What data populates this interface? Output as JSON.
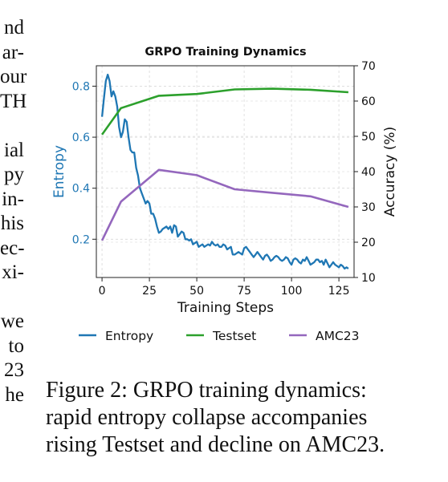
{
  "left_text_fragments": [
    "nd",
    "ar-",
    "our",
    "TH",
    "",
    "ial",
    "py",
    "in-",
    "his",
    "ec-",
    "xi-",
    "",
    "we",
    "to",
    "23",
    "he"
  ],
  "caption_lines": [
    "Figure 2: GRPO training dynamics:",
    "rapid entropy collapse accompanies",
    "rising Testset and decline on AMC23."
  ],
  "chart_data": {
    "type": "line",
    "title": "GRPO Training Dynamics",
    "xlabel": "Training Steps",
    "ylabel_left": "Entropy",
    "ylabel_right": "Accuracy (%)",
    "xlim": [
      -3,
      133
    ],
    "ylim_left": [
      0.05,
      0.88
    ],
    "ylim_right": [
      10,
      70
    ],
    "x_ticks": [
      0,
      25,
      50,
      75,
      100,
      125
    ],
    "y_left_ticks": [
      0.2,
      0.4,
      0.6,
      0.8
    ],
    "y_right_ticks": [
      10,
      20,
      30,
      40,
      50,
      60,
      70
    ],
    "grid": true,
    "legend_position": "bottom",
    "colors": {
      "entropy": "#1f77b4",
      "testset": "#2ca02c",
      "amc23": "#9467bd",
      "left_axis_text": "#1f77b4"
    },
    "series": [
      {
        "name": "Entropy",
        "axis": "left",
        "x": [
          0,
          1,
          2,
          3,
          4,
          5,
          6,
          7,
          8,
          9,
          10,
          11,
          12,
          13,
          14,
          15,
          16,
          17,
          18,
          19,
          20,
          21,
          22,
          23,
          24,
          25,
          26,
          27,
          28,
          29,
          30,
          31,
          32,
          33,
          34,
          35,
          36,
          37,
          38,
          39,
          40,
          41,
          42,
          43,
          44,
          45,
          46,
          47,
          48,
          49,
          50,
          51,
          52,
          53,
          54,
          55,
          56,
          57,
          58,
          59,
          60,
          61,
          62,
          63,
          64,
          65,
          66,
          67,
          68,
          69,
          70,
          71,
          72,
          73,
          74,
          75,
          76,
          77,
          78,
          79,
          80,
          81,
          82,
          83,
          84,
          85,
          86,
          87,
          88,
          89,
          90,
          91,
          92,
          93,
          94,
          95,
          96,
          97,
          98,
          99,
          100,
          101,
          102,
          103,
          104,
          105,
          106,
          107,
          108,
          109,
          110,
          111,
          112,
          113,
          114,
          115,
          116,
          117,
          118,
          119,
          120,
          121,
          122,
          123,
          124,
          125,
          126,
          127,
          128,
          129,
          130
        ],
        "values": [
          0.68,
          0.75,
          0.82,
          0.845,
          0.82,
          0.76,
          0.78,
          0.76,
          0.72,
          0.64,
          0.6,
          0.62,
          0.67,
          0.66,
          0.6,
          0.55,
          0.54,
          0.54,
          0.48,
          0.45,
          0.4,
          0.38,
          0.36,
          0.34,
          0.35,
          0.34,
          0.3,
          0.3,
          0.28,
          0.25,
          0.225,
          0.23,
          0.24,
          0.245,
          0.25,
          0.24,
          0.25,
          0.225,
          0.255,
          0.25,
          0.21,
          0.22,
          0.23,
          0.225,
          0.2,
          0.2,
          0.195,
          0.2,
          0.18,
          0.185,
          0.19,
          0.17,
          0.175,
          0.18,
          0.17,
          0.175,
          0.18,
          0.175,
          0.19,
          0.18,
          0.175,
          0.18,
          0.17,
          0.17,
          0.18,
          0.175,
          0.16,
          0.165,
          0.17,
          0.14,
          0.14,
          0.145,
          0.15,
          0.145,
          0.14,
          0.165,
          0.17,
          0.16,
          0.15,
          0.14,
          0.13,
          0.14,
          0.15,
          0.14,
          0.13,
          0.12,
          0.135,
          0.14,
          0.13,
          0.115,
          0.12,
          0.13,
          0.135,
          0.13,
          0.12,
          0.115,
          0.12,
          0.13,
          0.125,
          0.11,
          0.1,
          0.12,
          0.125,
          0.12,
          0.11,
          0.105,
          0.12,
          0.115,
          0.13,
          0.115,
          0.1,
          0.105,
          0.11,
          0.12,
          0.12,
          0.11,
          0.115,
          0.1,
          0.12,
          0.105,
          0.09,
          0.1,
          0.11,
          0.1,
          0.095,
          0.09,
          0.1,
          0.095,
          0.085,
          0.09,
          0.085
        ]
      },
      {
        "name": "Testset",
        "axis": "right",
        "x": [
          0,
          10,
          30,
          50,
          70,
          90,
          110,
          130
        ],
        "values": [
          50.5,
          58,
          61.5,
          62,
          63.3,
          63.5,
          63.2,
          62.5
        ]
      },
      {
        "name": "AMC23",
        "axis": "right",
        "x": [
          0,
          10,
          30,
          50,
          70,
          90,
          110,
          130
        ],
        "values": [
          20.5,
          31.5,
          40.5,
          39,
          35,
          34,
          33,
          30
        ]
      }
    ]
  }
}
